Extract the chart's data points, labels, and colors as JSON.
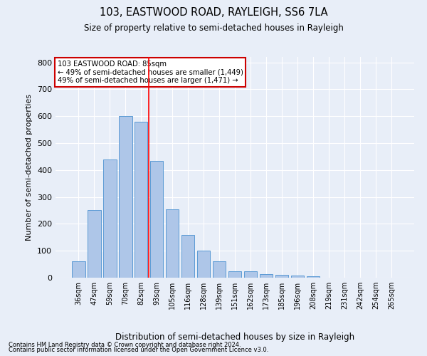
{
  "title": "103, EASTWOOD ROAD, RAYLEIGH, SS6 7LA",
  "subtitle": "Size of property relative to semi-detached houses in Rayleigh",
  "xlabel": "Distribution of semi-detached houses by size in Rayleigh",
  "ylabel": "Number of semi-detached properties",
  "footnote1": "Contains HM Land Registry data © Crown copyright and database right 2024.",
  "footnote2": "Contains public sector information licensed under the Open Government Licence v3.0.",
  "categories": [
    "36sqm",
    "47sqm",
    "59sqm",
    "70sqm",
    "82sqm",
    "93sqm",
    "105sqm",
    "116sqm",
    "128sqm",
    "139sqm",
    "151sqm",
    "162sqm",
    "173sqm",
    "185sqm",
    "196sqm",
    "208sqm",
    "219sqm",
    "231sqm",
    "242sqm",
    "254sqm",
    "265sqm"
  ],
  "values": [
    60,
    250,
    440,
    600,
    580,
    435,
    255,
    160,
    100,
    60,
    25,
    25,
    12,
    10,
    8,
    5,
    0,
    0,
    0,
    0,
    0
  ],
  "bar_color": "#aec6e8",
  "bar_edge_color": "#5b9bd5",
  "background_color": "#e8eef8",
  "grid_color": "#ffffff",
  "property_line_x": 4.5,
  "annotation_text1": "103 EASTWOOD ROAD: 85sqm",
  "annotation_text2": "← 49% of semi-detached houses are smaller (1,449)",
  "annotation_text3": "49% of semi-detached houses are larger (1,471) →",
  "annotation_box_color": "#ffffff",
  "annotation_box_edge": "#cc0000",
  "ylim": [
    0,
    820
  ],
  "yticks": [
    0,
    100,
    200,
    300,
    400,
    500,
    600,
    700,
    800
  ]
}
